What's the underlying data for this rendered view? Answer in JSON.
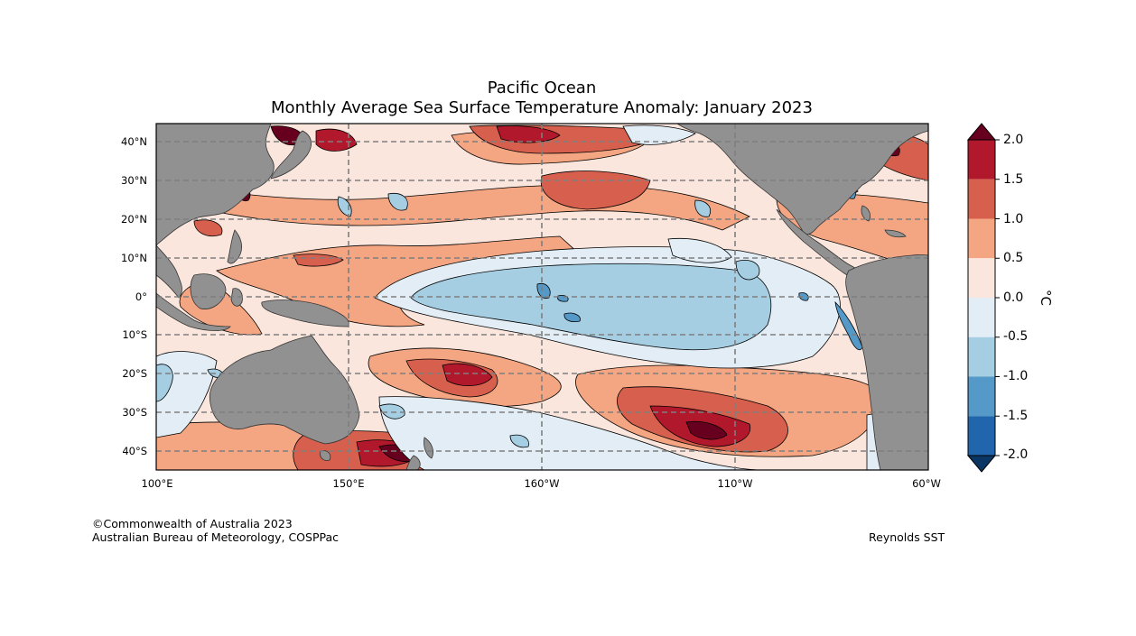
{
  "title_line1": "Pacific Ocean",
  "title_line2": "Monthly Average Sea Surface Temperature Anomaly: January 2023",
  "lat_labels": [
    "40°N",
    "30°N",
    "20°N",
    "10°N",
    "0°",
    "10°S",
    "20°S",
    "30°S",
    "40°S"
  ],
  "lon_labels": [
    "100°E",
    "150°E",
    "160°W",
    "110°W",
    "60°W"
  ],
  "colorbar": {
    "unit": "°C",
    "tick_labels": [
      "2.0",
      "1.5",
      "1.0",
      "0.5",
      "0.0",
      "-0.5",
      "-1.0",
      "-1.5",
      "-2.0"
    ],
    "levels": [
      2.0,
      1.5,
      1.0,
      0.5,
      0.0,
      -0.5,
      -1.0,
      -1.5,
      -2.0
    ],
    "colors": [
      "#67001f",
      "#b2182b",
      "#d6604d",
      "#f4a582",
      "#fae6dc",
      "#e2edf5",
      "#a6cee3",
      "#5499c7",
      "#2166ac",
      "#0b3563"
    ]
  },
  "land_color": "#919191",
  "copyright": "©Commonwealth of Australia 2023",
  "agency": "Australian Bureau of Meteorology, COSPPac",
  "source": "Reynolds SST"
}
